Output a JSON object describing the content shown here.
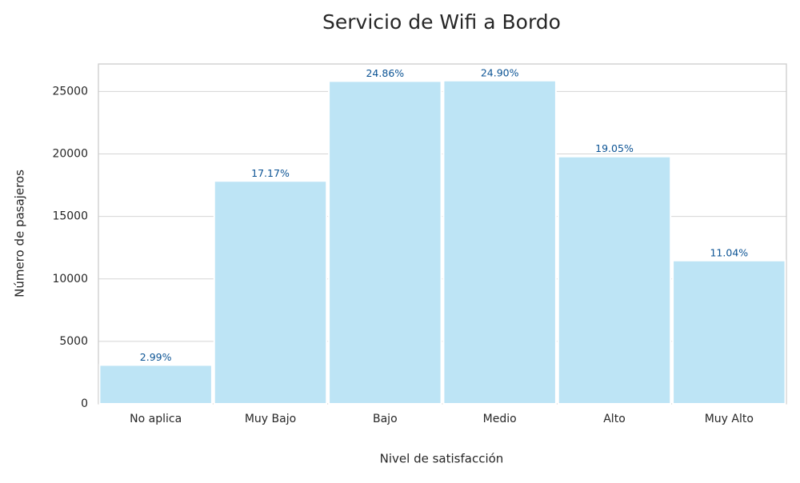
{
  "chart_data": {
    "type": "bar",
    "title": "Servicio de Wifi a Bordo",
    "xlabel": "Nivel de satisfacción",
    "ylabel": "Número de pasajeros",
    "categories": [
      "No aplica",
      "Muy Bajo",
      "Bajo",
      "Medio",
      "Alto",
      "Muy Alto"
    ],
    "values": [
      3107,
      17840,
      25830,
      25872,
      19794,
      11471
    ],
    "percent_labels": [
      "2.99%",
      "17.17%",
      "24.86%",
      "24.90%",
      "19.05%",
      "11.04%"
    ],
    "color": "#bde4f5",
    "label_color": "#0b5394",
    "ylim": [
      0,
      27200
    ],
    "yticks": [
      0,
      5000,
      10000,
      15000,
      20000,
      25000
    ],
    "grid": true
  }
}
